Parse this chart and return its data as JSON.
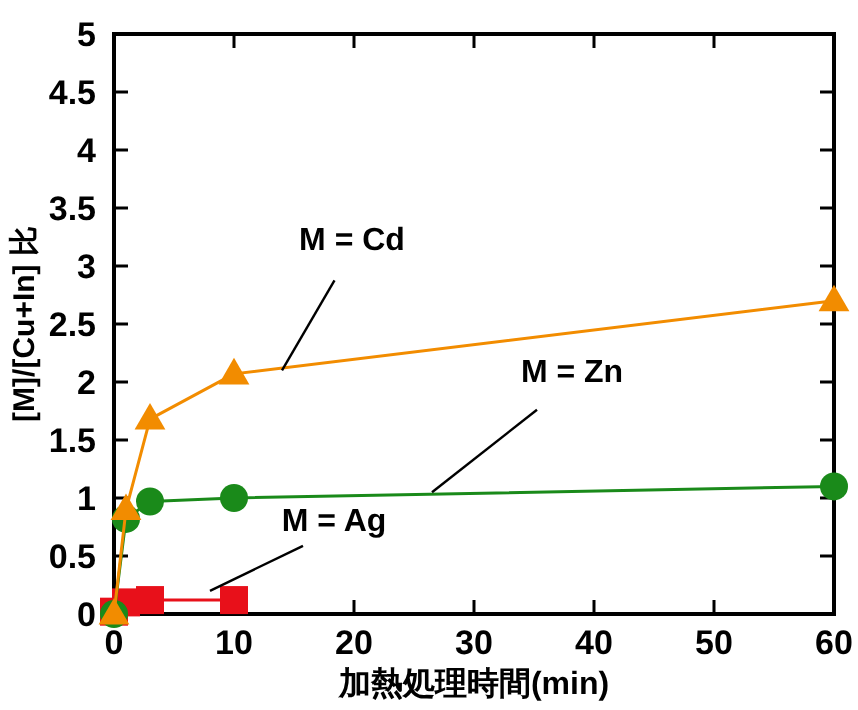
{
  "chart_data": {
    "type": "line",
    "xlabel": "加熱処理時間(min)",
    "ylabel": "[M]/[Cu+In] 比",
    "x": [
      0,
      1,
      3,
      10,
      60
    ],
    "series": [
      {
        "color": "#f28c00",
        "marker": "triangle",
        "values": [
          0,
          0.9,
          1.68,
          2.07,
          2.7
        ]
      },
      {
        "color": "#1a8a1a",
        "marker": "circle",
        "values": [
          0,
          0.82,
          0.97,
          1.0,
          1.1
        ]
      },
      {
        "color": "#e8101a",
        "marker": "square",
        "values": [
          0.02,
          0.1,
          0.12,
          0.12,
          null
        ]
      }
    ],
    "xlim": [
      0,
      60
    ],
    "xticks": [
      0,
      10,
      20,
      30,
      40,
      50,
      60
    ],
    "ylim": [
      0,
      5
    ],
    "yticks": [
      0,
      0.5,
      1,
      1.5,
      2,
      2.5,
      3,
      3.5,
      4,
      4.5,
      5
    ],
    "grid": false,
    "annotations": [
      {
        "text": "M = Cd",
        "x": 14,
        "y": 2.1
      },
      {
        "text": "M = Zn",
        "x": 26.5,
        "y": 1.05
      },
      {
        "text": "M = Ag",
        "x": 8,
        "y": 0.2
      }
    ]
  }
}
